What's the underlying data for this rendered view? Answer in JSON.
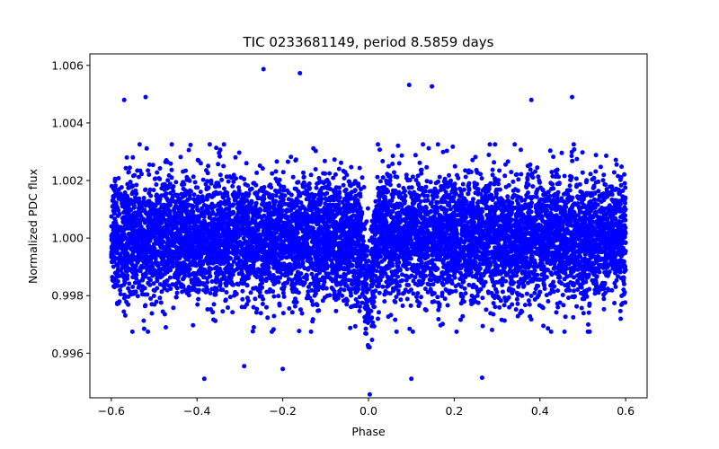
{
  "chart_data": {
    "type": "scatter",
    "title": "TIC 0233681149, period 8.5859 days",
    "xlabel": "Phase",
    "ylabel": "Normalized PDC flux",
    "xlim": [
      -0.65,
      0.65
    ],
    "ylim": [
      0.99445,
      1.0064
    ],
    "xticks": [
      -0.6,
      -0.4,
      -0.2,
      0.0,
      0.2,
      0.4,
      0.6
    ],
    "xtick_labels": [
      "−0.6",
      "−0.4",
      "−0.2",
      "0.0",
      "0.2",
      "0.4",
      "0.6"
    ],
    "yticks": [
      0.996,
      0.998,
      1.0,
      1.002,
      1.004,
      1.006
    ],
    "ytick_labels": [
      "0.996",
      "0.998",
      "1.000",
      "1.002",
      "1.004",
      "1.006"
    ],
    "grid": false,
    "marker_color": "#0000ff",
    "series": [
      {
        "name": "PDC flux",
        "x_range": [
          -0.6,
          0.6
        ],
        "baseline": 1.0,
        "noise_sigma": 0.00105,
        "point_count": 9000,
        "transit": {
          "center": 0.0,
          "half_width": 0.015,
          "depth": 0.0022
        },
        "outliers": [
          {
            "x": -0.245,
            "y": 1.00587
          },
          {
            "x": -0.16,
            "y": 1.00573
          },
          {
            "x": 0.095,
            "y": 1.00532
          },
          {
            "x": 0.148,
            "y": 1.00527
          },
          {
            "x": -0.52,
            "y": 1.0049
          },
          {
            "x": 0.475,
            "y": 1.0049
          },
          {
            "x": -0.57,
            "y": 1.0048
          },
          {
            "x": 0.38,
            "y": 1.0048
          },
          {
            "x": -0.383,
            "y": 0.99511
          },
          {
            "x": 0.1,
            "y": 0.99511
          },
          {
            "x": 0.265,
            "y": 0.99515
          },
          {
            "x": -0.29,
            "y": 0.99555
          },
          {
            "x": -0.2,
            "y": 0.99545
          },
          {
            "x": 0.003,
            "y": 0.99457
          }
        ]
      }
    ]
  }
}
